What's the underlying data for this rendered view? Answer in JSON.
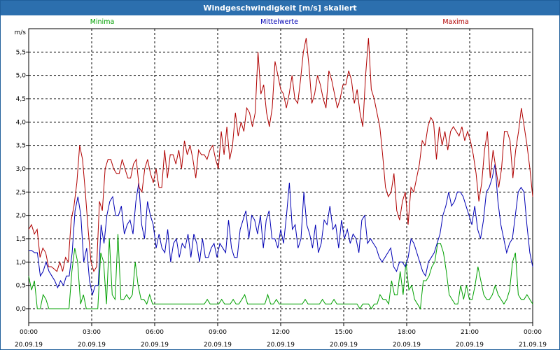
{
  "window": {
    "title": "Windgeschwindigkeit [m/s] skaliert"
  },
  "chart_data": {
    "type": "line",
    "title": "Windgeschwindigkeit [m/s] skaliert",
    "ylabel": "m/s",
    "ylim": [
      -0.3,
      6.0
    ],
    "yticks": [
      "0,0",
      "0,5",
      "1,0",
      "1,5",
      "2,0",
      "2,5",
      "3,0",
      "3,5",
      "4,0",
      "4,5",
      "5,0",
      "5,5"
    ],
    "ytick_values": [
      0,
      0.5,
      1,
      1.5,
      2,
      2.5,
      3,
      3.5,
      4,
      4.5,
      5,
      5.5
    ],
    "xlim": [
      0,
      24
    ],
    "xticks": [
      {
        "time": "00:00",
        "date": "20.09.19",
        "h": 0
      },
      {
        "time": "03:00",
        "date": "20.09.19",
        "h": 3
      },
      {
        "time": "06:00",
        "date": "20.09.19",
        "h": 6
      },
      {
        "time": "09:00",
        "date": "20.09.19",
        "h": 9
      },
      {
        "time": "12:00",
        "date": "20.09.19",
        "h": 12
      },
      {
        "time": "15:00",
        "date": "20.09.19",
        "h": 15
      },
      {
        "time": "18:00",
        "date": "20.09.19",
        "h": 18
      },
      {
        "time": "21:00",
        "date": "20.09.19",
        "h": 21
      },
      {
        "time": "00:00",
        "date": "21.09.19",
        "h": 24
      }
    ],
    "grid": true,
    "legend": "top",
    "x_step_hours": 0.1667,
    "series": [
      {
        "name": "Minima",
        "color": "#00a000",
        "values": [
          0.7,
          0.4,
          0.6,
          0,
          0,
          0.3,
          0.2,
          0,
          0,
          0,
          0,
          0,
          0,
          0,
          0,
          0.8,
          1.3,
          1.0,
          0.1,
          0.3,
          0,
          0,
          0,
          0,
          0,
          1.2,
          1.0,
          0.1,
          1.5,
          0.3,
          0.2,
          1.6,
          0.2,
          0.2,
          0.3,
          0.2,
          0.3,
          1.0,
          0.5,
          0.2,
          0.2,
          0.1,
          0.3,
          0.1,
          0.1,
          0.1,
          0.1,
          0.1,
          0.1,
          0.1,
          0.1,
          0.1,
          0.1,
          0.1,
          0.1,
          0.1,
          0.1,
          0.1,
          0.1,
          0.1,
          0.1,
          0.1,
          0.2,
          0.1,
          0.1,
          0.1,
          0.1,
          0.2,
          0.1,
          0.1,
          0.1,
          0.2,
          0.1,
          0.1,
          0.2,
          0.3,
          0.1,
          0.1,
          0.1,
          0.1,
          0.1,
          0.1,
          0.1,
          0.3,
          0.1,
          0.1,
          0.2,
          0.1,
          0.1,
          0.1,
          0.1,
          0.1,
          0.1,
          0.1,
          0.1,
          0.1,
          0.2,
          0.1,
          0.1,
          0.1,
          0.1,
          0.1,
          0.2,
          0.1,
          0.1,
          0.1,
          0.2,
          0.1,
          0.1,
          0.1,
          0.1,
          0.1,
          0.1,
          0.1,
          0.1,
          0.0,
          0.1,
          0.1,
          0.1,
          0.0,
          0.1,
          0.1,
          0.3,
          0.2,
          0.2,
          0.1,
          0.6,
          0.3,
          0.3,
          0.8,
          0.3,
          1.0,
          0.4,
          0.5,
          0.2,
          0.1,
          0.0,
          0.6,
          0.6,
          0.7,
          0.9,
          1.0,
          1.4,
          1.4,
          1.2,
          0.8,
          0.3,
          0.2,
          0.1,
          0.1,
          0.5,
          0.2,
          0.5,
          0.2,
          0.2,
          0.5,
          0.9,
          0.6,
          0.3,
          0.2,
          0.2,
          0.3,
          0.5,
          0.3,
          0.2,
          0.1,
          0.2,
          0.4,
          1.0,
          1.2,
          0.3,
          0.2,
          0.2,
          0.3,
          0.2,
          0.1
        ]
      },
      {
        "name": "Mittelwerte",
        "color": "#0000b4",
        "values": [
          1.25,
          1.25,
          1.2,
          1.2,
          0.7,
          0.8,
          1.0,
          0.8,
          0.7,
          0.6,
          0.45,
          0.6,
          0.5,
          0.7,
          0.7,
          1.2,
          2.1,
          2.4,
          2.0,
          1.0,
          1.3,
          0.6,
          0.3,
          0.5,
          0.5,
          1.8,
          1.4,
          2.0,
          2.3,
          2.4,
          2.0,
          2.0,
          2.2,
          1.6,
          1.8,
          1.9,
          1.6,
          2.3,
          2.7,
          1.8,
          1.5,
          2.3,
          2.0,
          1.8,
          1.3,
          1.6,
          1.3,
          1.2,
          1.7,
          1.0,
          1.4,
          1.5,
          1.1,
          1.4,
          1.3,
          1.6,
          1.1,
          1.6,
          1.4,
          1.0,
          1.5,
          1.1,
          1.1,
          1.3,
          1.4,
          1.1,
          1.4,
          1.3,
          1.2,
          1.9,
          1.3,
          1.1,
          1.1,
          1.7,
          1.9,
          2.1,
          1.5,
          2.0,
          1.9,
          1.6,
          2.0,
          1.3,
          1.9,
          2.1,
          1.5,
          1.5,
          1.3,
          1.7,
          1.4,
          2.0,
          2.7,
          1.7,
          1.8,
          1.3,
          1.5,
          2.5,
          1.8,
          1.6,
          1.3,
          1.8,
          1.2,
          1.4,
          1.9,
          1.8,
          2.2,
          1.7,
          1.8,
          1.3,
          1.9,
          1.5,
          1.7,
          1.4,
          1.6,
          1.5,
          1.2,
          1.9,
          2.0,
          1.4,
          1.5,
          1.4,
          1.3,
          1.1,
          1.0,
          1.1,
          1.2,
          1.3,
          0.9,
          0.8,
          1.0,
          1.0,
          0.9,
          1.1,
          1.5,
          1.4,
          1.2,
          1.0,
          0.8,
          0.7,
          1.0,
          1.1,
          1.2,
          1.4,
          1.6,
          2.0,
          2.2,
          2.5,
          2.2,
          2.3,
          2.5,
          2.5,
          2.4,
          2.2,
          2.0,
          1.8,
          2.2,
          1.7,
          1.5,
          1.9,
          2.5,
          2.6,
          2.8,
          3.1,
          2.3,
          1.8,
          1.5,
          1.2,
          1.4,
          1.5,
          2.0,
          2.5,
          2.6,
          2.5,
          1.8,
          1.2,
          0.9
        ]
      },
      {
        "name": "Maxima",
        "color": "#b00000",
        "values": [
          1.7,
          1.8,
          1.6,
          1.7,
          1.1,
          1.3,
          1.2,
          0.9,
          0.9,
          0.85,
          0.8,
          1.0,
          0.8,
          1.1,
          1.0,
          1.9,
          2.2,
          2.7,
          3.5,
          3.2,
          2.5,
          1.7,
          1.0,
          0.8,
          0.9,
          2.3,
          2.1,
          3.0,
          3.2,
          3.2,
          3.0,
          2.9,
          2.9,
          3.2,
          3.0,
          2.8,
          2.8,
          3.1,
          3.2,
          2.6,
          2.5,
          3.0,
          3.2,
          2.9,
          2.7,
          3.0,
          2.6,
          2.6,
          3.4,
          2.8,
          3.3,
          3.3,
          3.1,
          3.4,
          3.0,
          3.6,
          3.3,
          3.5,
          3.2,
          2.8,
          3.4,
          3.3,
          3.3,
          3.2,
          3.4,
          3.5,
          3.2,
          3.0,
          3.8,
          3.3,
          3.9,
          3.2,
          3.5,
          4.2,
          3.7,
          4.0,
          3.8,
          4.3,
          4.2,
          3.9,
          4.2,
          5.5,
          4.6,
          4.8,
          4.2,
          3.9,
          4.3,
          5.3,
          5.0,
          4.7,
          4.6,
          4.3,
          4.6,
          5.0,
          4.5,
          4.4,
          4.9,
          5.5,
          5.8,
          5.2,
          4.4,
          4.6,
          5.0,
          4.8,
          4.5,
          4.3,
          5.1,
          4.9,
          4.6,
          4.3,
          4.5,
          4.8,
          4.8,
          5.1,
          4.9,
          4.4,
          4.7,
          4.2,
          3.9,
          5.0,
          5.8,
          4.7,
          4.5,
          4.2,
          3.9,
          3.3,
          2.6,
          2.4,
          2.5,
          2.9,
          2.1,
          1.9,
          2.3,
          2.5,
          1.8,
          2.6,
          2.5,
          2.8,
          3.1,
          3.6,
          3.5,
          3.9,
          4.1,
          4.0,
          3.2,
          3.9,
          3.5,
          3.8,
          3.4,
          3.8,
          3.9,
          3.8,
          3.7,
          3.9,
          3.6,
          3.8,
          3.6,
          3.3,
          2.9,
          2.3,
          2.7,
          3.4,
          3.8,
          2.8,
          3.4,
          3.0,
          2.6,
          3.0,
          3.8,
          3.8,
          3.6,
          2.8,
          3.4,
          3.8,
          4.3,
          3.9,
          3.5,
          3.0,
          2.4
        ]
      }
    ]
  }
}
